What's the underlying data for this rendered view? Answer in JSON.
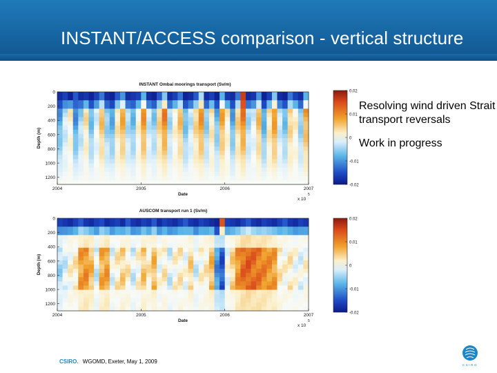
{
  "slide": {
    "title": "INSTANT/ACCESS comparison - vertical structure",
    "bullets": [
      "Resolving wind driven Strait transport reversals",
      "Work in progress"
    ],
    "footer": {
      "org": "CSIRO.",
      "text": "WGOMD, Exeter, May 1, 2009"
    },
    "logo_text": "CSIRO",
    "colors": {
      "header": "#1766a3",
      "footer_org": "#1f86c6"
    }
  },
  "chart_data": [
    {
      "type": "heatmap",
      "title": "INSTANT Ombai moorings transport (Sv/m)",
      "xlabel": "Date",
      "ylabel": "Depth (m)",
      "x_ticks": [
        "2004",
        "2005",
        "2006",
        "2007"
      ],
      "x_exponent": "x 10",
      "x_exponent_power": "5",
      "y_ticks": [
        "0",
        "200",
        "400",
        "600",
        "800",
        "1000",
        "1200"
      ],
      "y_range": [
        0,
        1300
      ],
      "x_range": [
        2004,
        2007
      ],
      "colorbar_ticks": [
        "0.02",
        "0.01",
        "0",
        "-0.01",
        "-0.02"
      ],
      "colorbar_range": [
        -0.02,
        0.02
      ],
      "columns": [
        -0.6,
        -0.2,
        0.1,
        -0.7,
        -0.3,
        0.2,
        -0.5,
        -0.1,
        0.4,
        -0.4,
        -0.6,
        0.2,
        0.5,
        -0.3,
        -0.5,
        0.1,
        0.6,
        -0.2,
        -0.4,
        0.3,
        0.7,
        -0.3,
        0.1,
        0.4,
        -0.5,
        -0.2,
        0.3,
        0.6,
        -0.4,
        0.2,
        -0.5,
        0.5,
        0.1,
        -0.6,
        0.3,
        0.7,
        -0.3,
        -0.1,
        0.4,
        -0.6,
        0.2,
        0.6,
        -0.2,
        -0.5,
        0.3,
        0.1,
        -0.4,
        0.5
      ],
      "surface_band": [
        -0.9,
        -0.8,
        -0.95,
        -0.7,
        -0.9,
        -0.85,
        -0.95,
        -0.8,
        -0.6,
        -0.9,
        -0.95,
        -0.7,
        -0.5,
        -0.9,
        -0.85,
        -0.8,
        -0.4,
        -0.9,
        -0.95,
        -0.7,
        -0.3,
        -0.9,
        -0.8,
        -0.6,
        -0.95,
        -0.9,
        -0.7,
        -0.2,
        -0.9,
        -0.8,
        -0.95,
        -0.4,
        -0.85,
        -0.9,
        -0.6,
        0.8,
        -0.9,
        -0.85,
        -0.5,
        -0.95,
        -0.8,
        -0.3,
        -0.9,
        -0.95,
        -0.6,
        -0.8,
        -0.9,
        -0.4
      ]
    },
    {
      "type": "heatmap",
      "title": "AUSCOM transport run 1 (Sv/m)",
      "xlabel": "Date",
      "ylabel": "Depth (m)",
      "x_ticks": [
        "2004",
        "2005",
        "2006",
        "2007"
      ],
      "x_exponent": "x 10",
      "x_exponent_power": "5",
      "y_ticks": [
        "0",
        "200",
        "400",
        "600",
        "800",
        "1000",
        "1200"
      ],
      "y_range": [
        0,
        1300
      ],
      "x_range": [
        2004,
        2007
      ],
      "colorbar_ticks": [
        "0.02",
        "0.01",
        "0",
        "-0.01",
        "-0.02"
      ],
      "colorbar_range": [
        -0.02,
        0.02
      ],
      "columns": [
        -0.2,
        -0.1,
        0.05,
        0.1,
        0.4,
        0.45,
        0.3,
        -0.1,
        0.35,
        0.4,
        -0.05,
        0.1,
        0.2,
        0.1,
        -0.1,
        0.05,
        0.25,
        0.1,
        0.3,
        0.0,
        0.1,
        -0.1,
        0.05,
        0.1,
        0.0,
        0.2,
        -0.1,
        0.05,
        0.1,
        0.3,
        -0.5,
        -0.7,
        0.0,
        0.2,
        0.45,
        0.6,
        0.65,
        0.6,
        0.55,
        0.5,
        0.45,
        0.4,
        0.1,
        0.05,
        0.1,
        0.0,
        -0.05,
        0.05
      ],
      "surface_band": [
        -0.8,
        -0.85,
        -0.9,
        -0.8,
        -0.7,
        -0.85,
        -0.9,
        -0.8,
        -0.75,
        -0.9,
        -0.85,
        -0.8,
        -0.9,
        -0.7,
        -0.85,
        -0.9,
        -0.8,
        -0.85,
        -0.7,
        -0.9,
        -0.8,
        -0.85,
        -0.9,
        -0.8,
        -0.7,
        -0.85,
        -0.9,
        -0.8,
        -0.85,
        -0.9,
        -0.95,
        0.7,
        -0.8,
        -0.85,
        -0.9,
        -0.8,
        -0.7,
        -0.85,
        -0.9,
        -0.8,
        -0.85,
        -0.9,
        -0.8,
        -0.7,
        -0.85,
        -0.9,
        -0.8,
        -0.85
      ]
    }
  ]
}
